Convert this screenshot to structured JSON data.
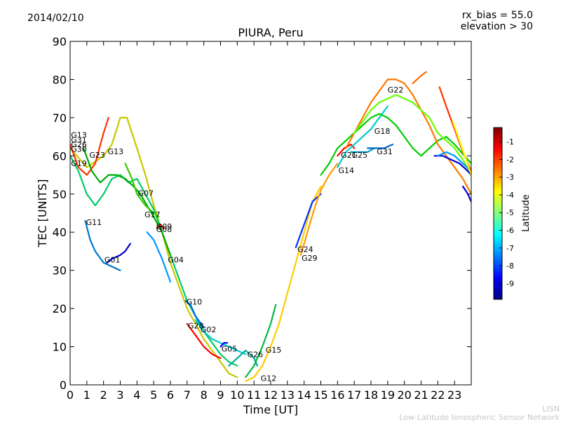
{
  "date": "2014/02/10",
  "rx_bias": "rx_bias = 55.0",
  "elevation": "elevation > 30",
  "footer": {
    "line1": "LISN",
    "line2": "Low-Latitude Ionospheric Sensor Network"
  },
  "colorbar": {
    "label": "Latitude",
    "ticks": [
      "-1",
      "-2",
      "-3",
      "-4",
      "-5",
      "-6",
      "-7",
      "-8",
      "-9"
    ],
    "colors": [
      "#00007f",
      "#0000ff",
      "#007fff",
      "#00ffff",
      "#7fff7f",
      "#ffff00",
      "#ff7f00",
      "#ff0000",
      "#7f0000"
    ]
  },
  "chart_data": {
    "type": "line",
    "title": "PIURA, Peru",
    "xlabel": "Time [UT]",
    "ylabel": "TEC [UNITS]",
    "xlim": [
      0,
      24
    ],
    "ylim": [
      0,
      90
    ],
    "xticks": [
      "0",
      "1",
      "2",
      "3",
      "4",
      "5",
      "6",
      "7",
      "8",
      "9",
      "10",
      "11",
      "12",
      "13",
      "14",
      "15",
      "16",
      "17",
      "18",
      "19",
      "20",
      "21",
      "22",
      "23"
    ],
    "yticks": [
      "0",
      "10",
      "20",
      "30",
      "40",
      "50",
      "60",
      "70",
      "80",
      "90"
    ],
    "series": [
      {
        "name": "G13",
        "color": "#c8c800",
        "x": [
          0,
          1,
          2,
          2.5,
          3,
          3.4,
          4,
          4.5,
          5,
          5.5,
          6,
          7,
          8,
          9,
          9.5,
          10
        ],
        "y": [
          62,
          57,
          60,
          63,
          70,
          70,
          62,
          55,
          47,
          40,
          32,
          20,
          12,
          6,
          3,
          2
        ]
      },
      {
        "name": "G23",
        "color": "#ff3300",
        "x": [
          0,
          0.5,
          1,
          1.5,
          2,
          2.3
        ],
        "y": [
          63,
          57,
          55,
          58,
          66,
          70
        ]
      },
      {
        "name": "G19",
        "color": "#00cc66",
        "x": [
          0,
          0.5,
          1,
          1.5,
          2,
          2.5,
          3,
          3.5,
          4,
          4.5,
          5,
          5.5,
          6,
          7,
          8,
          9,
          9.5,
          10
        ],
        "y": [
          60,
          56,
          50,
          47,
          50,
          54,
          55,
          53,
          54,
          50,
          46,
          40,
          34,
          22,
          14,
          8,
          6,
          5
        ]
      },
      {
        "name": "G11",
        "color": "#0077cc",
        "x": [
          0.9,
          1.2,
          1.5,
          2,
          2.5,
          3
        ],
        "y": [
          43,
          38,
          35,
          32,
          31,
          30
        ]
      },
      {
        "name": "G01",
        "color": "#0000cc",
        "x": [
          2.2,
          2.5,
          3,
          3.3,
          3.6
        ],
        "y": [
          32,
          33,
          34,
          35,
          37
        ]
      },
      {
        "name": "G07",
        "color": "#00aa00",
        "x": [
          0.8,
          1.3,
          1.8,
          2.3,
          2.8,
          3.3,
          3.8,
          4.2,
          4.6,
          5,
          5.5,
          6
        ],
        "y": [
          62,
          56,
          53,
          55,
          55,
          54,
          52,
          50,
          47,
          44,
          40,
          34
        ]
      },
      {
        "name": "G17",
        "color": "#33cc00",
        "x": [
          3.3,
          3.7,
          4,
          4.5,
          5,
          5.3
        ],
        "y": [
          58,
          54,
          50,
          47,
          45,
          44
        ]
      },
      {
        "name": "G09",
        "color": "#cc0000",
        "x": [
          5.2,
          5.4,
          5.6
        ],
        "y": [
          41,
          42,
          41
        ]
      },
      {
        "name": "G04",
        "color": "#0099ff",
        "x": [
          4.6,
          5,
          5.5,
          6
        ],
        "y": [
          40,
          38,
          33,
          27
        ]
      },
      {
        "name": "G10",
        "color": "#0066ff",
        "x": [
          6.9,
          7.2,
          7.5,
          8
        ],
        "y": [
          22,
          21,
          18,
          15
        ]
      },
      {
        "name": "G28",
        "color": "#ff0000",
        "x": [
          7,
          7.5,
          8,
          8.5,
          9
        ],
        "y": [
          16,
          13,
          10,
          8,
          7
        ]
      },
      {
        "name": "G02",
        "color": "#00cccc",
        "x": [
          7.5,
          8,
          8.5,
          9,
          9.5,
          10,
          10.5
        ],
        "y": [
          17,
          14,
          12,
          11,
          10,
          9,
          8
        ]
      },
      {
        "name": "G05",
        "color": "#0000ff",
        "x": [
          9,
          9.2,
          9.4
        ],
        "y": [
          10,
          11,
          11
        ]
      },
      {
        "name": "G26",
        "color": "#00aa99",
        "x": [
          9.5,
          10,
          10.5,
          11,
          11.2
        ],
        "y": [
          5,
          7,
          9,
          7,
          5
        ]
      },
      {
        "name": "G15",
        "color": "#00bb44",
        "x": [
          10.5,
          11,
          11.5,
          12,
          12.3
        ],
        "y": [
          2,
          5,
          10,
          16,
          21
        ]
      },
      {
        "name": "G12",
        "color": "#ffcc00",
        "x": [
          10.5,
          11,
          11.5,
          12,
          12.5,
          13,
          13.5,
          14,
          14.5,
          15
        ],
        "y": [
          1,
          2,
          5,
          10,
          16,
          24,
          32,
          40,
          48,
          52
        ]
      },
      {
        "name": "G24",
        "color": "#0033ff",
        "x": [
          13.5,
          14,
          14.5,
          15
        ],
        "y": [
          36,
          42,
          48,
          50
        ]
      },
      {
        "name": "G29",
        "color": "#ff9900",
        "x": [
          13.8,
          14.2,
          14.6,
          15,
          15.5,
          16
        ],
        "y": [
          34,
          40,
          46,
          51,
          55,
          58
        ]
      },
      {
        "name": "G21",
        "color": "#ff0000",
        "x": [
          16,
          16.4,
          16.8,
          17
        ],
        "y": [
          60,
          62,
          63,
          62
        ]
      },
      {
        "name": "G14",
        "color": "#00cccc",
        "x": [
          16,
          16.5,
          17,
          17.5,
          18,
          18.5,
          19
        ],
        "y": [
          57,
          61,
          63,
          65,
          67,
          70,
          73
        ]
      },
      {
        "name": "G25",
        "color": "#0099cc",
        "x": [
          16.8,
          17.3,
          17.8,
          18.2
        ],
        "y": [
          61,
          61,
          61,
          62
        ]
      },
      {
        "name": "G31",
        "color": "#0066cc",
        "x": [
          17.8,
          18.3,
          18.8,
          19.3
        ],
        "y": [
          62,
          62,
          62,
          63
        ]
      },
      {
        "name": "G18",
        "color": "#00cc00",
        "x": [
          15,
          15.5,
          16,
          16.5,
          17,
          17.5,
          18,
          18.5,
          19,
          19.5,
          20,
          20.5,
          21,
          21.5,
          22,
          22.5,
          23,
          24
        ],
        "y": [
          55,
          58,
          62,
          64,
          66,
          68,
          70,
          71,
          70,
          68,
          65,
          62,
          60,
          62,
          64,
          65,
          63,
          58
        ]
      },
      {
        "name": "G22",
        "color": "#ff7700",
        "x": [
          16.5,
          17,
          17.5,
          18,
          18.5,
          19,
          19.5,
          20,
          20.5,
          21,
          21.5,
          22,
          22.5,
          23,
          23.5,
          24
        ],
        "y": [
          62,
          66,
          70,
          74,
          77,
          80,
          80,
          79,
          76,
          72,
          68,
          63,
          60,
          57,
          54,
          50
        ]
      },
      {
        "name": "",
        "color": "#66ff00",
        "x": [
          17,
          17.5,
          18,
          18.5,
          19,
          19.5,
          20,
          20.5,
          21,
          21.5,
          22,
          22.5,
          23,
          23.5,
          24
        ],
        "y": [
          66,
          69,
          72,
          74,
          75,
          76,
          75,
          74,
          72,
          70,
          66,
          64,
          62,
          59,
          55
        ]
      },
      {
        "name": "",
        "color": "#ff6600",
        "x": [
          20.5,
          21,
          21.3
        ],
        "y": [
          79,
          81,
          82
        ]
      },
      {
        "name": "",
        "color": "#0000dd",
        "x": [
          21.8,
          22.3,
          22.8,
          23.3,
          23.8,
          24
        ],
        "y": [
          60,
          60,
          59,
          58,
          56,
          55
        ]
      },
      {
        "name": "",
        "color": "#0099ff",
        "x": [
          22,
          22.5,
          23,
          23.5,
          24
        ],
        "y": [
          60,
          61,
          60,
          58,
          56
        ]
      },
      {
        "name": "",
        "color": "#ff3300",
        "x": [
          22.1,
          22.5,
          23,
          23.5,
          24
        ],
        "y": [
          78,
          73,
          67,
          61,
          56
        ]
      },
      {
        "name": "",
        "color": "#ffff00",
        "x": [
          22.9,
          23.3,
          23.7,
          24
        ],
        "y": [
          69,
          64,
          59,
          55
        ]
      },
      {
        "name": "",
        "color": "#0000cc",
        "x": [
          23.5,
          23.8,
          24
        ],
        "y": [
          52,
          50,
          48
        ]
      }
    ],
    "labels": [
      {
        "text": "G13",
        "x": 0.05,
        "y": 65.5
      },
      {
        "text": "G31",
        "x": 0.05,
        "y": 64.2
      },
      {
        "text": "G26",
        "x": 0.05,
        "y": 63
      },
      {
        "text": "G30",
        "x": 0.05,
        "y": 61.8
      },
      {
        "text": "G19",
        "x": 0.05,
        "y": 58
      },
      {
        "text": "G23",
        "x": 1.15,
        "y": 60.2
      },
      {
        "text": "G13",
        "x": 2.25,
        "y": 61.2
      },
      {
        "text": "G11",
        "x": 0.95,
        "y": 42.6
      },
      {
        "text": "G01",
        "x": 2.05,
        "y": 32.8
      },
      {
        "text": "G07",
        "x": 4.05,
        "y": 50.2
      },
      {
        "text": "G17",
        "x": 4.45,
        "y": 44.6
      },
      {
        "text": "G09",
        "x": 5.15,
        "y": 41.5
      },
      {
        "text": "G08",
        "x": 5.15,
        "y": 40.8
      },
      {
        "text": "G04",
        "x": 5.85,
        "y": 32.8
      },
      {
        "text": "G10",
        "x": 6.95,
        "y": 21.8
      },
      {
        "text": "G28",
        "x": 7.05,
        "y": 15.5
      },
      {
        "text": "G02",
        "x": 7.8,
        "y": 14.5
      },
      {
        "text": "G05",
        "x": 9.05,
        "y": 9.5
      },
      {
        "text": "G26",
        "x": 10.6,
        "y": 8
      },
      {
        "text": "G15",
        "x": 11.7,
        "y": 9.2
      },
      {
        "text": "G12",
        "x": 11.4,
        "y": 1.7
      },
      {
        "text": "G24",
        "x": 13.6,
        "y": 35.5
      },
      {
        "text": "G29",
        "x": 13.85,
        "y": 33.2
      },
      {
        "text": "G21",
        "x": 16.2,
        "y": 60.2
      },
      {
        "text": "G25",
        "x": 16.85,
        "y": 60.2
      },
      {
        "text": "G14",
        "x": 16.05,
        "y": 56.2
      },
      {
        "text": "G18",
        "x": 18.2,
        "y": 66.5
      },
      {
        "text": "G31",
        "x": 18.35,
        "y": 61.2
      },
      {
        "text": "G22",
        "x": 19,
        "y": 77.3
      }
    ]
  }
}
